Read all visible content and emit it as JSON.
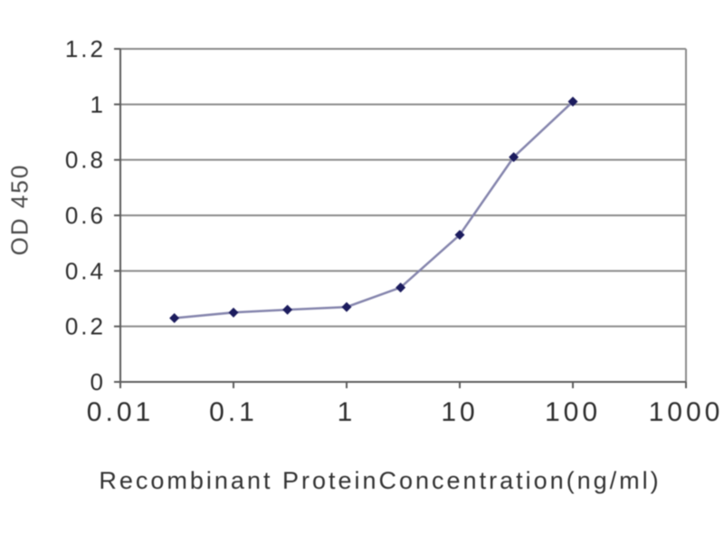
{
  "chart_data": {
    "type": "line",
    "title": "",
    "xlabel": "Recombinant ProteinConcentration(ng/ml)",
    "ylabel": "OD 450",
    "x_scale": "log",
    "xlim": [
      0.01,
      1000
    ],
    "ylim": [
      0,
      1.2
    ],
    "x_ticks": [
      "0.01",
      "0.1",
      "1",
      "10",
      "100",
      "1000"
    ],
    "x_tick_values": [
      0.01,
      0.1,
      1,
      10,
      100,
      1000
    ],
    "y_ticks": [
      "0",
      "0.2",
      "0.4",
      "0.6",
      "0.8",
      "1",
      "1.2"
    ],
    "y_tick_values": [
      0,
      0.2,
      0.4,
      0.6,
      0.8,
      1,
      1.2
    ],
    "grid": true,
    "legend": false,
    "series": [
      {
        "name": "OD 450",
        "marker": "diamond",
        "x": [
          0.03,
          0.1,
          0.3,
          1,
          3,
          10,
          30,
          100
        ],
        "y": [
          0.23,
          0.25,
          0.26,
          0.27,
          0.34,
          0.53,
          0.81,
          1.01
        ]
      }
    ],
    "colors": {
      "background": "#ffffff",
      "gridline": "#8a8a8a",
      "axis": "#5c5c5c",
      "plot_border": "#8a8a8a",
      "series_line": "#8585ad",
      "marker_fill": "#1c1c5e",
      "tick_text": "#2d2d2d",
      "axis_label_text": "#323232"
    }
  }
}
